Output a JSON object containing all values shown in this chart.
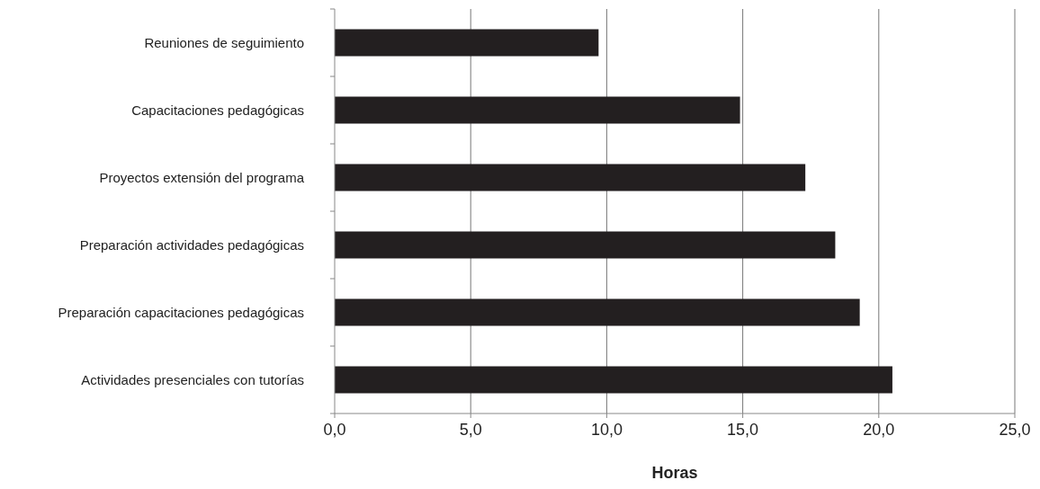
{
  "chart_data": {
    "type": "bar",
    "orientation": "horizontal",
    "categories": [
      "Reuniones de seguimiento",
      "Capacitaciones pedagógicas",
      "Proyectos extensión del programa",
      "Preparación actividades pedagógicas",
      "Preparación capacitaciones pedagógicas",
      "Actividades presenciales con tutorías"
    ],
    "values": [
      9.7,
      14.9,
      17.3,
      18.4,
      19.3,
      20.5
    ],
    "color": "#231f20",
    "xlabel": "Horas",
    "xlim": [
      0,
      25
    ],
    "xticks": [
      {
        "value": 0,
        "label": "0,0"
      },
      {
        "value": 5,
        "label": "5,0"
      },
      {
        "value": 10,
        "label": "10,0"
      },
      {
        "value": 15,
        "label": "15,0"
      },
      {
        "value": 20,
        "label": "20,0"
      },
      {
        "value": 25,
        "label": "25,0"
      }
    ],
    "grid": "x"
  }
}
